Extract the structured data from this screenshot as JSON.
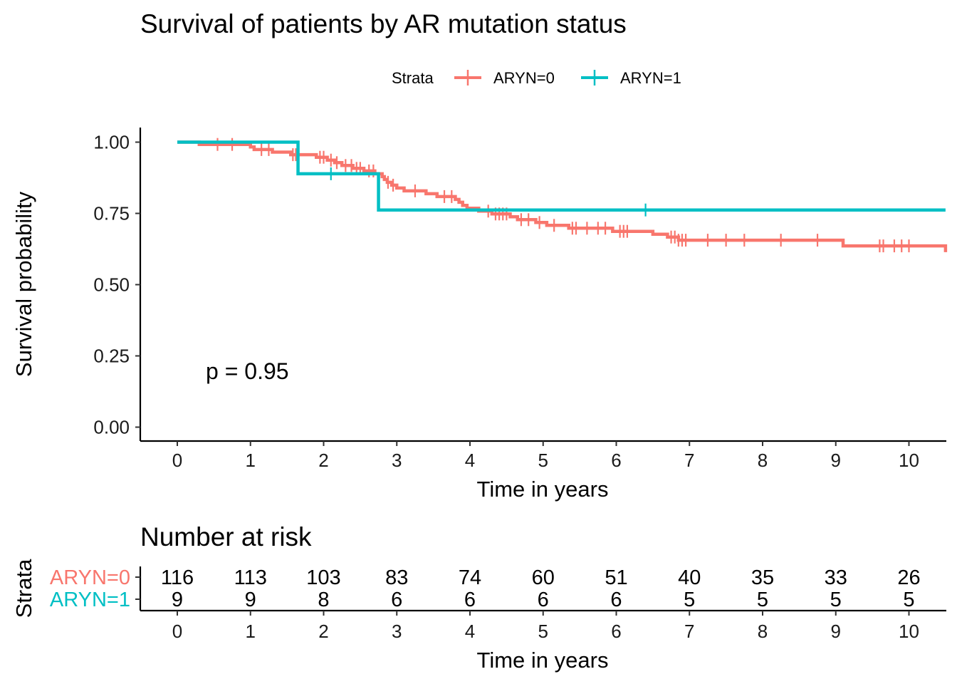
{
  "chart_data": [
    {
      "type": "line",
      "subtype": "kaplan-meier",
      "title": "Survival of patients by AR mutation status",
      "xlabel": "Time in years",
      "ylabel": "Survival probability",
      "xlim": [
        0,
        10.5
      ],
      "ylim": [
        0,
        1.0
      ],
      "x_ticks": [
        "0",
        "1",
        "2",
        "3",
        "4",
        "5",
        "6",
        "7",
        "8",
        "9",
        "10"
      ],
      "y_ticks": [
        "0.00",
        "0.25",
        "0.50",
        "0.75",
        "1.00"
      ],
      "grid": false,
      "legend": {
        "title": "Strata",
        "position": "top"
      },
      "annotation": "p = 0.95",
      "series": [
        {
          "name": "ARYN=0",
          "color": "#F8766D",
          "steps": [
            [
              0,
              1.0
            ],
            [
              0.3,
              0.992
            ],
            [
              1.0,
              0.983
            ],
            [
              1.05,
              0.974
            ],
            [
              1.3,
              0.965
            ],
            [
              1.55,
              0.956
            ],
            [
              1.9,
              0.947
            ],
            [
              2.05,
              0.937
            ],
            [
              2.15,
              0.928
            ],
            [
              2.25,
              0.918
            ],
            [
              2.4,
              0.908
            ],
            [
              2.55,
              0.899
            ],
            [
              2.7,
              0.889
            ],
            [
              2.8,
              0.879
            ],
            [
              2.83,
              0.869
            ],
            [
              2.87,
              0.859
            ],
            [
              2.93,
              0.849
            ],
            [
              3.0,
              0.839
            ],
            [
              3.1,
              0.829
            ],
            [
              3.4,
              0.819
            ],
            [
              3.55,
              0.809
            ],
            [
              3.8,
              0.799
            ],
            [
              3.85,
              0.789
            ],
            [
              3.9,
              0.778
            ],
            [
              3.96,
              0.768
            ],
            [
              4.12,
              0.758
            ],
            [
              4.3,
              0.748
            ],
            [
              4.55,
              0.738
            ],
            [
              4.65,
              0.728
            ],
            [
              4.9,
              0.718
            ],
            [
              5.05,
              0.708
            ],
            [
              5.35,
              0.698
            ],
            [
              5.95,
              0.687
            ],
            [
              6.5,
              0.677
            ],
            [
              6.7,
              0.667
            ],
            [
              6.85,
              0.656
            ],
            [
              9.1,
              0.636
            ],
            [
              10.5,
              0.614
            ]
          ],
          "censor": [
            0.55,
            0.75,
            1.15,
            1.25,
            1.58,
            1.62,
            1.95,
            2.0,
            2.1,
            2.18,
            2.3,
            2.38,
            2.45,
            2.5,
            2.62,
            2.68,
            2.88,
            2.95,
            3.25,
            3.65,
            3.75,
            4.25,
            4.35,
            4.4,
            4.45,
            4.5,
            4.7,
            4.8,
            4.95,
            5.15,
            5.4,
            5.45,
            5.6,
            5.75,
            5.85,
            6.05,
            6.1,
            6.15,
            6.75,
            6.8,
            6.85,
            6.9,
            6.95,
            7.25,
            7.5,
            7.75,
            8.25,
            8.75,
            9.6,
            9.65,
            9.8,
            9.9,
            10.0
          ]
        },
        {
          "name": "ARYN=1",
          "color": "#00BFC4",
          "steps": [
            [
              0,
              1.0
            ],
            [
              1.65,
              0.889
            ],
            [
              2.75,
              0.762
            ],
            [
              10.5,
              0.762
            ]
          ],
          "censor": [
            2.1,
            6.4
          ]
        }
      ]
    },
    {
      "type": "table",
      "title": "Number at risk",
      "xlabel": "Time in years",
      "ylabel": "Strata",
      "x_ticks": [
        "0",
        "1",
        "2",
        "3",
        "4",
        "5",
        "6",
        "7",
        "8",
        "9",
        "10"
      ],
      "rows": [
        {
          "name": "ARYN=0",
          "color": "#F8766D",
          "values": [
            "116",
            "113",
            "103",
            "83",
            "74",
            "60",
            "51",
            "40",
            "35",
            "33",
            "26"
          ]
        },
        {
          "name": "ARYN=1",
          "color": "#00BFC4",
          "values": [
            "9",
            "9",
            "8",
            "6",
            "6",
            "6",
            "6",
            "5",
            "5",
            "5",
            "5"
          ]
        }
      ]
    }
  ]
}
